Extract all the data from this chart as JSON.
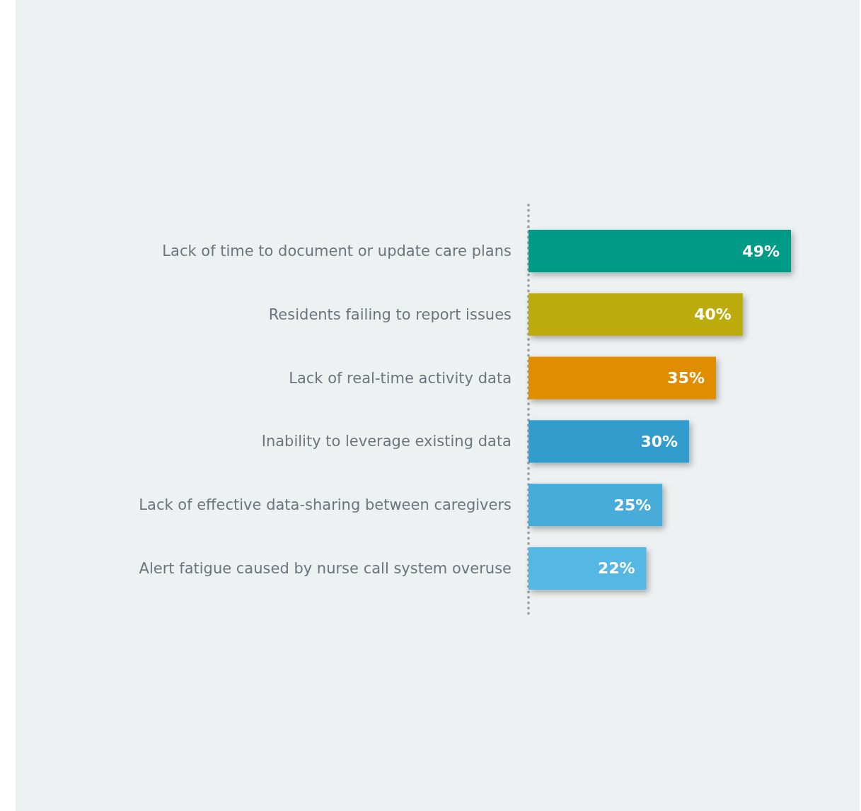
{
  "chart_data": {
    "type": "bar",
    "orientation": "horizontal",
    "categories": [
      "Lack of time to document or update care plans",
      "Residents failing to report issues",
      "Lack of real-time activity data",
      "Inability to leverage existing data",
      "Lack of effective data-sharing between caregivers",
      "Alert fatigue caused by nurse call system overuse"
    ],
    "values": [
      49,
      40,
      35,
      30,
      25,
      22
    ],
    "colors": [
      "#009b87",
      "#bcab0b",
      "#e08e04",
      "#339ccc",
      "#47acd9",
      "#55b7e3"
    ],
    "value_labels": [
      "49%",
      "40%",
      "35%",
      "30%",
      "25%",
      "22%"
    ]
  }
}
